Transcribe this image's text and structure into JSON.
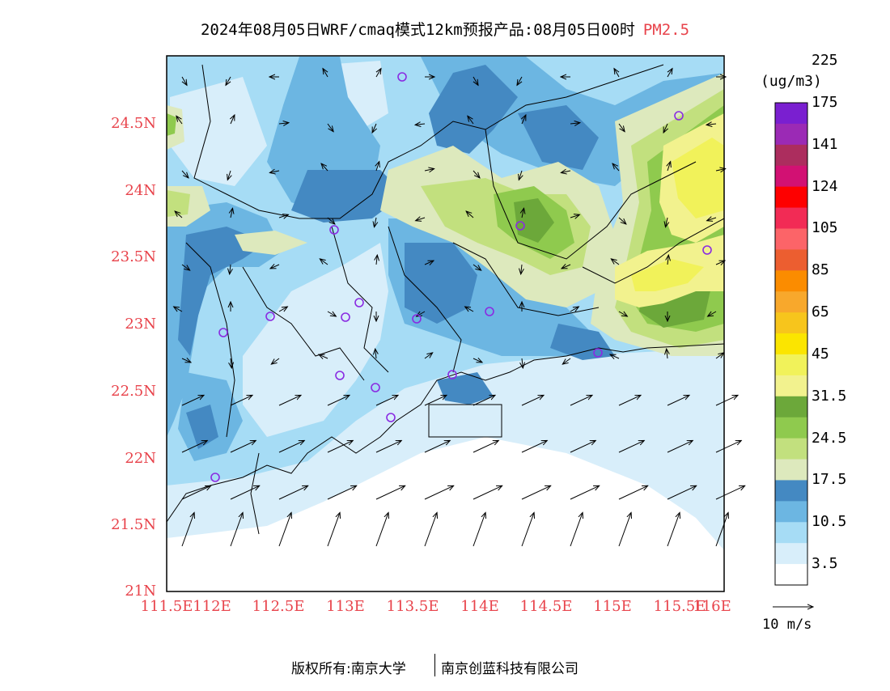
{
  "title": {
    "main": "2024年08月05日WRF/cmaq模式12km预报产品:08月05日00时",
    "pollutant": "PM2.5"
  },
  "axes": {
    "lat_ticks": [
      "24.5N",
      "24N",
      "23.5N",
      "23N",
      "22.5N",
      "22N",
      "21.5N",
      "21N"
    ],
    "lon_ticks": [
      "111.5E",
      "112E",
      "112.5E",
      "113E",
      "113.5E",
      "114E",
      "114.5E",
      "115E",
      "115.5E",
      "116E"
    ]
  },
  "colorbar": {
    "unit": "(ug/m3)",
    "colors": [
      "#ffffff",
      "#d8eefa",
      "#a6dcf5",
      "#6cb6e2",
      "#4489c2",
      "#dde9bd",
      "#c2e07e",
      "#8fca4e",
      "#6ca83a",
      "#f2f28e",
      "#f1f25a",
      "#fbe500",
      "#f7c51c",
      "#f8a82c",
      "#fb8c00",
      "#ec5e30",
      "#fc6468",
      "#f22b55",
      "#fe0000",
      "#d21173",
      "#ac2d5e",
      "#9b2ab5",
      "#7a1fd0"
    ],
    "labels": [
      "3.5",
      "10.5",
      "17.5",
      "24.5",
      "31.5",
      "45",
      "65",
      "85",
      "105",
      "124",
      "141",
      "175",
      "225"
    ]
  },
  "wind_reference": "10 m/s",
  "credits": {
    "left": "版权所有:南京大学",
    "right": "南京创蓝科技有限公司"
  }
}
